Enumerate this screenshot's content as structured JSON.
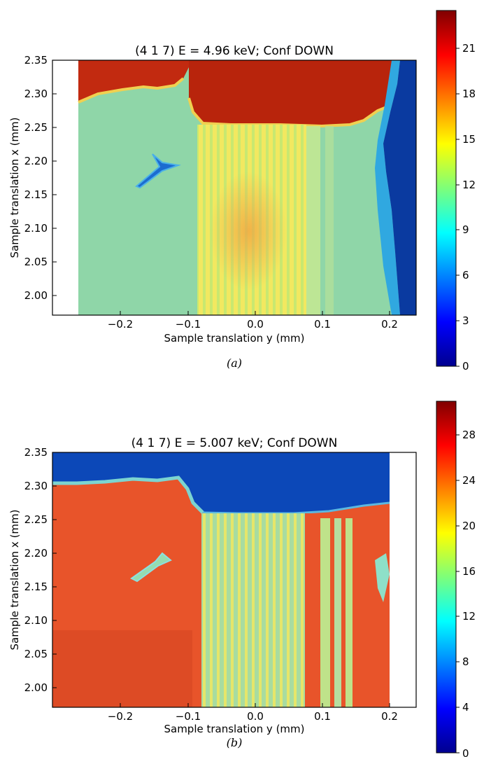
{
  "chart_data": [
    {
      "type": "heatmap",
      "panel": "(a)",
      "title": "(4 1 7)  E = 4.96 keV; Conf DOWN",
      "xlabel": "Sample translation y (mm)",
      "ylabel": "Sample translation x (mm)",
      "xlim": [
        -0.3,
        0.24
      ],
      "ylim": [
        1.97,
        2.35
      ],
      "x_ticks": [
        -0.2,
        -0.1,
        0.0,
        0.1,
        0.2
      ],
      "x_tick_labels": [
        "−0.2",
        "−0.1",
        "0.0",
        "0.1",
        "0.2"
      ],
      "y_ticks": [
        2.0,
        2.05,
        2.1,
        2.15,
        2.2,
        2.25,
        2.3,
        2.35
      ],
      "y_tick_labels": [
        "2.00",
        "2.05",
        "2.10",
        "2.15",
        "2.20",
        "2.25",
        "2.30",
        "2.35"
      ],
      "colorbar": {
        "min": 0,
        "max": 23.5,
        "ticks": [
          0,
          3,
          6,
          9,
          12,
          15,
          18,
          21
        ],
        "tick_labels": [
          "0",
          "3",
          "6",
          "9",
          "12",
          "15",
          "18",
          "21"
        ]
      },
      "colormap": "jet",
      "grid": false,
      "regions": [
        {
          "name": "no-data",
          "y": [
            -0.3,
            -0.262
          ],
          "x": [
            1.97,
            2.35
          ],
          "value": null
        },
        {
          "name": "background",
          "y": [
            -0.262,
            0.21
          ],
          "x": [
            1.97,
            2.35
          ],
          "value": 11
        },
        {
          "name": "top-left-high",
          "y": [
            -0.262,
            -0.1
          ],
          "x": [
            2.285,
            2.35
          ],
          "value": 21
        },
        {
          "name": "top-middle-high",
          "y": [
            -0.1,
            0.2
          ],
          "x": [
            2.255,
            2.35
          ],
          "value": 22
        },
        {
          "name": "striped-band",
          "y": [
            -0.085,
            0.072
          ],
          "x": [
            1.97,
            2.255
          ],
          "value": 15
        },
        {
          "name": "right-edge-low",
          "y": [
            0.205,
            0.24
          ],
          "x": [
            1.97,
            2.35
          ],
          "value": 2
        }
      ]
    },
    {
      "type": "heatmap",
      "panel": "(b)",
      "title": "(4 1 7)  E = 5.007 keV; Conf DOWN",
      "xlabel": "Sample translation y (mm)",
      "ylabel": "Sample translation x (mm)",
      "xlim": [
        -0.3,
        0.24
      ],
      "ylim": [
        1.97,
        2.35
      ],
      "x_ticks": [
        -0.2,
        -0.1,
        0.0,
        0.1,
        0.2
      ],
      "x_tick_labels": [
        "−0.2",
        "−0.1",
        "0.0",
        "0.1",
        "0.2"
      ],
      "y_ticks": [
        2.0,
        2.05,
        2.1,
        2.15,
        2.2,
        2.25,
        2.3,
        2.35
      ],
      "y_tick_labels": [
        "2.00",
        "2.05",
        "2.10",
        "2.15",
        "2.20",
        "2.25",
        "2.30",
        "2.35"
      ],
      "colorbar": {
        "min": 0,
        "max": 31,
        "ticks": [
          0,
          4,
          8,
          12,
          16,
          20,
          24,
          28
        ],
        "tick_labels": [
          "0",
          "4",
          "8",
          "12",
          "16",
          "20",
          "24",
          "28"
        ]
      },
      "colormap": "jet",
      "grid": false,
      "regions": [
        {
          "name": "top-low",
          "y": [
            -0.3,
            0.2
          ],
          "x": [
            2.275,
            2.35
          ],
          "value": 3
        },
        {
          "name": "left-high",
          "y": [
            -0.3,
            -0.095
          ],
          "x": [
            1.97,
            2.275
          ],
          "value": 27
        },
        {
          "name": "striped-band",
          "y": [
            -0.09,
            0.075
          ],
          "x": [
            1.97,
            2.26
          ],
          "value": 15
        },
        {
          "name": "right-stripes",
          "y": [
            0.075,
            0.2
          ],
          "x": [
            1.97,
            2.26
          ],
          "value": 25
        },
        {
          "name": "no-data",
          "y": [
            0.2,
            0.24
          ],
          "x": [
            1.97,
            2.35
          ],
          "value": null
        }
      ]
    }
  ],
  "captions": [
    "(a)",
    "(b)"
  ],
  "colors": {
    "jet_low": "#00008f",
    "jet_high": "#800000",
    "panel_a_background": "#8fd6a8"
  }
}
